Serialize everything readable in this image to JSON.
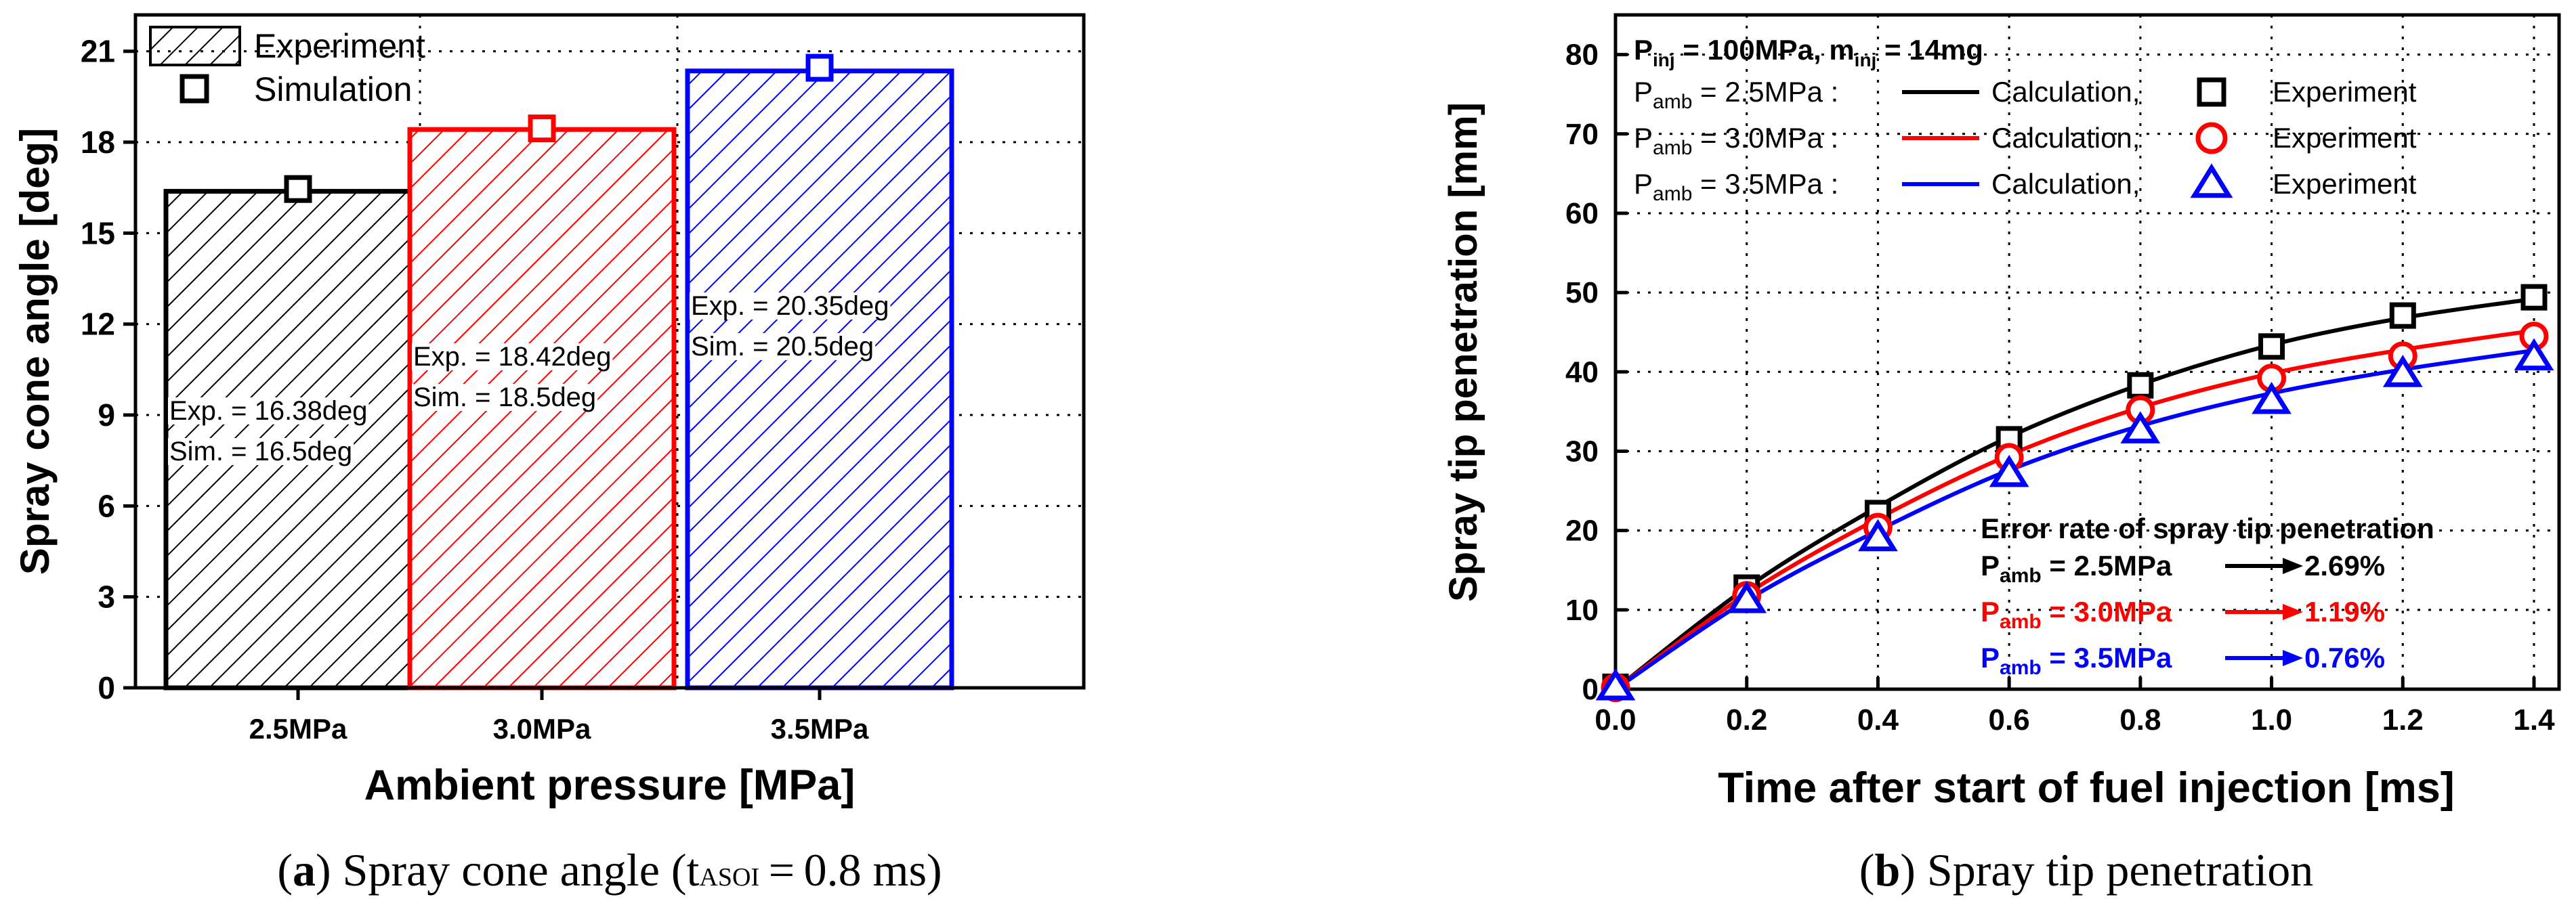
{
  "chart_data": [
    {
      "type": "bar",
      "ylabel": "Spray cone angle [deg]",
      "xlabel": "Ambient pressure [MPa]",
      "yticks": [
        0,
        3,
        6,
        9,
        12,
        15,
        18,
        21
      ],
      "ylim": [
        0,
        22.2
      ],
      "categories": [
        "2.5MPa",
        "3.0MPa",
        "3.5MPa"
      ],
      "series": [
        {
          "name": "Experiment",
          "values": [
            16.38,
            18.42,
            20.35
          ]
        },
        {
          "name": "Simulation",
          "values": [
            16.5,
            18.5,
            20.5
          ]
        }
      ],
      "bar_colors": [
        "#000000",
        "#ff0000",
        "#0000ff"
      ],
      "annotations": [
        {
          "line1": "Exp. = 16.38deg",
          "line2": "Sim. = 16.5deg"
        },
        {
          "line1": "Exp. = 18.42deg",
          "line2": "Sim. = 18.5deg"
        },
        {
          "line1": "Exp. = 20.35deg",
          "line2": "Sim. = 20.5deg"
        }
      ],
      "legend": [
        "Experiment",
        "Simulation"
      ],
      "legend_position": "top-left",
      "grid": true,
      "caption": {
        "letter": "a",
        "text": ") Spray cone angle (t",
        "sub": "ASOI",
        "after": " = 0.8 ms)"
      }
    },
    {
      "type": "line",
      "xlabel": "Time after start of fuel injection [ms]",
      "ylabel": "Spray tip penetration [mm]",
      "xlim": [
        0,
        1.4
      ],
      "ylim": [
        0,
        85
      ],
      "xticks": [
        "0.0",
        "0.2",
        "0.4",
        "0.6",
        "0.8",
        "1.0",
        "1.2",
        "1.4"
      ],
      "yticks": [
        0,
        10,
        20,
        30,
        40,
        50,
        60,
        70,
        80
      ],
      "x": [
        0,
        0.2,
        0.4,
        0.6,
        0.8,
        1.0,
        1.2,
        1.4
      ],
      "series": [
        {
          "name": "2.5MPa",
          "color": "#000000",
          "marker": "square",
          "calculation": [
            0,
            12.8,
            23,
            31.8,
            38.4,
            43.4,
            46.8,
            49.2
          ],
          "experiment": [
            0.3,
            12.8,
            22.2,
            31.5,
            38.3,
            43.2,
            47.1,
            49.4
          ]
        },
        {
          "name": "3.0MPa",
          "color": "#ff0000",
          "marker": "circle",
          "calculation": [
            0,
            12,
            21.5,
            29.5,
            35.5,
            39.8,
            42.8,
            45.2
          ],
          "experiment": [
            0.2,
            11.8,
            20.4,
            29.2,
            35.2,
            39.2,
            42,
            44.5
          ]
        },
        {
          "name": "3.5MPa",
          "color": "#0000ff",
          "marker": "triangle",
          "calculation": [
            0,
            11.2,
            20,
            27.6,
            33.2,
            37.3,
            40.3,
            42.7
          ],
          "experiment": [
            0.2,
            11.2,
            19,
            27.1,
            32.6,
            36.3,
            39.7,
            41.8
          ]
        }
      ],
      "conditions": {
        "p_inj_label": "P",
        "p_inj_sub": "inj",
        "p_inj_value": " = 100MPa, m",
        "m_inj_sub": "inj",
        "m_inj_value": " = 14mg"
      },
      "legend_rows": [
        {
          "p": "P",
          "sub": "amb",
          "value": " = 2.5MPa :",
          "calc": "Calculation,",
          "exp": "Experiment"
        },
        {
          "p": "P",
          "sub": "amb",
          "value": " = 3.0MPa :",
          "calc": "Calculation,",
          "exp": "Experiment"
        },
        {
          "p": "P",
          "sub": "amb",
          "value": " = 3.5MPa :",
          "calc": "Calculation,",
          "exp": "Experiment"
        }
      ],
      "error_title": "Error rate of spray tip penetration",
      "error_rows": [
        {
          "p": "P",
          "sub": "amb",
          "value": " = 2.5MPa",
          "rate": "2.69%",
          "color": "#000000"
        },
        {
          "p": "P",
          "sub": "amb",
          "value": " = 3.0MPa",
          "rate": "1.19%",
          "color": "#ff0000"
        },
        {
          "p": "P",
          "sub": "amb",
          "value": " = 3.5MPa",
          "rate": "0.76%",
          "color": "#0000ff"
        }
      ],
      "grid": true,
      "caption": {
        "letter": "b",
        "text": ") Spray tip penetration"
      }
    }
  ]
}
